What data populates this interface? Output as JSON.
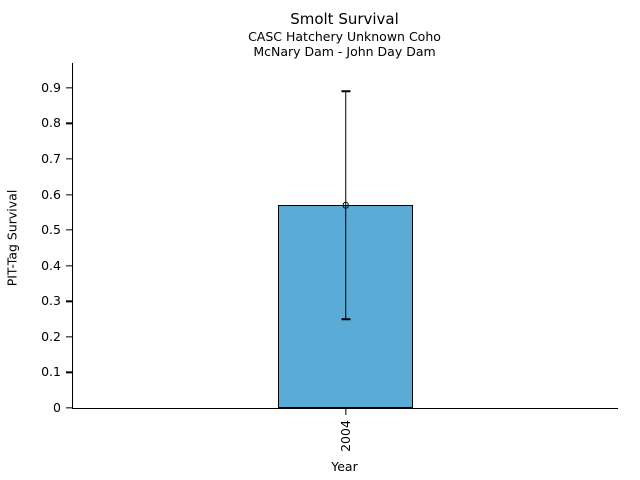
{
  "chart_data": {
    "type": "bar",
    "title": "Smolt Survival",
    "subtitle1": "CASC Hatchery Unknown Coho",
    "subtitle2": "McNary Dam - John Day Dam",
    "xlabel": "Year",
    "ylabel": "PIT-Tag Survival",
    "categories": [
      "2004"
    ],
    "values": [
      0.57
    ],
    "error_low": [
      0.25
    ],
    "error_high": [
      0.89
    ],
    "ylim": [
      0,
      0.97
    ],
    "yticks": [
      0,
      0.1,
      0.2,
      0.3,
      0.4,
      0.5,
      0.6,
      0.7,
      0.8,
      0.9
    ],
    "ytick_labels": [
      "0",
      "0.1",
      "0.2",
      "0.3",
      "0.4",
      "0.5",
      "0.6",
      "0.7",
      "0.8",
      "0.9"
    ],
    "grid": false,
    "legend": "none",
    "marker": "open-circle",
    "colors": {
      "bar_fill": "#5AABD6",
      "bar_edge": "#000000",
      "error": "#000000",
      "text": "#000000",
      "axis": "#000000"
    }
  }
}
